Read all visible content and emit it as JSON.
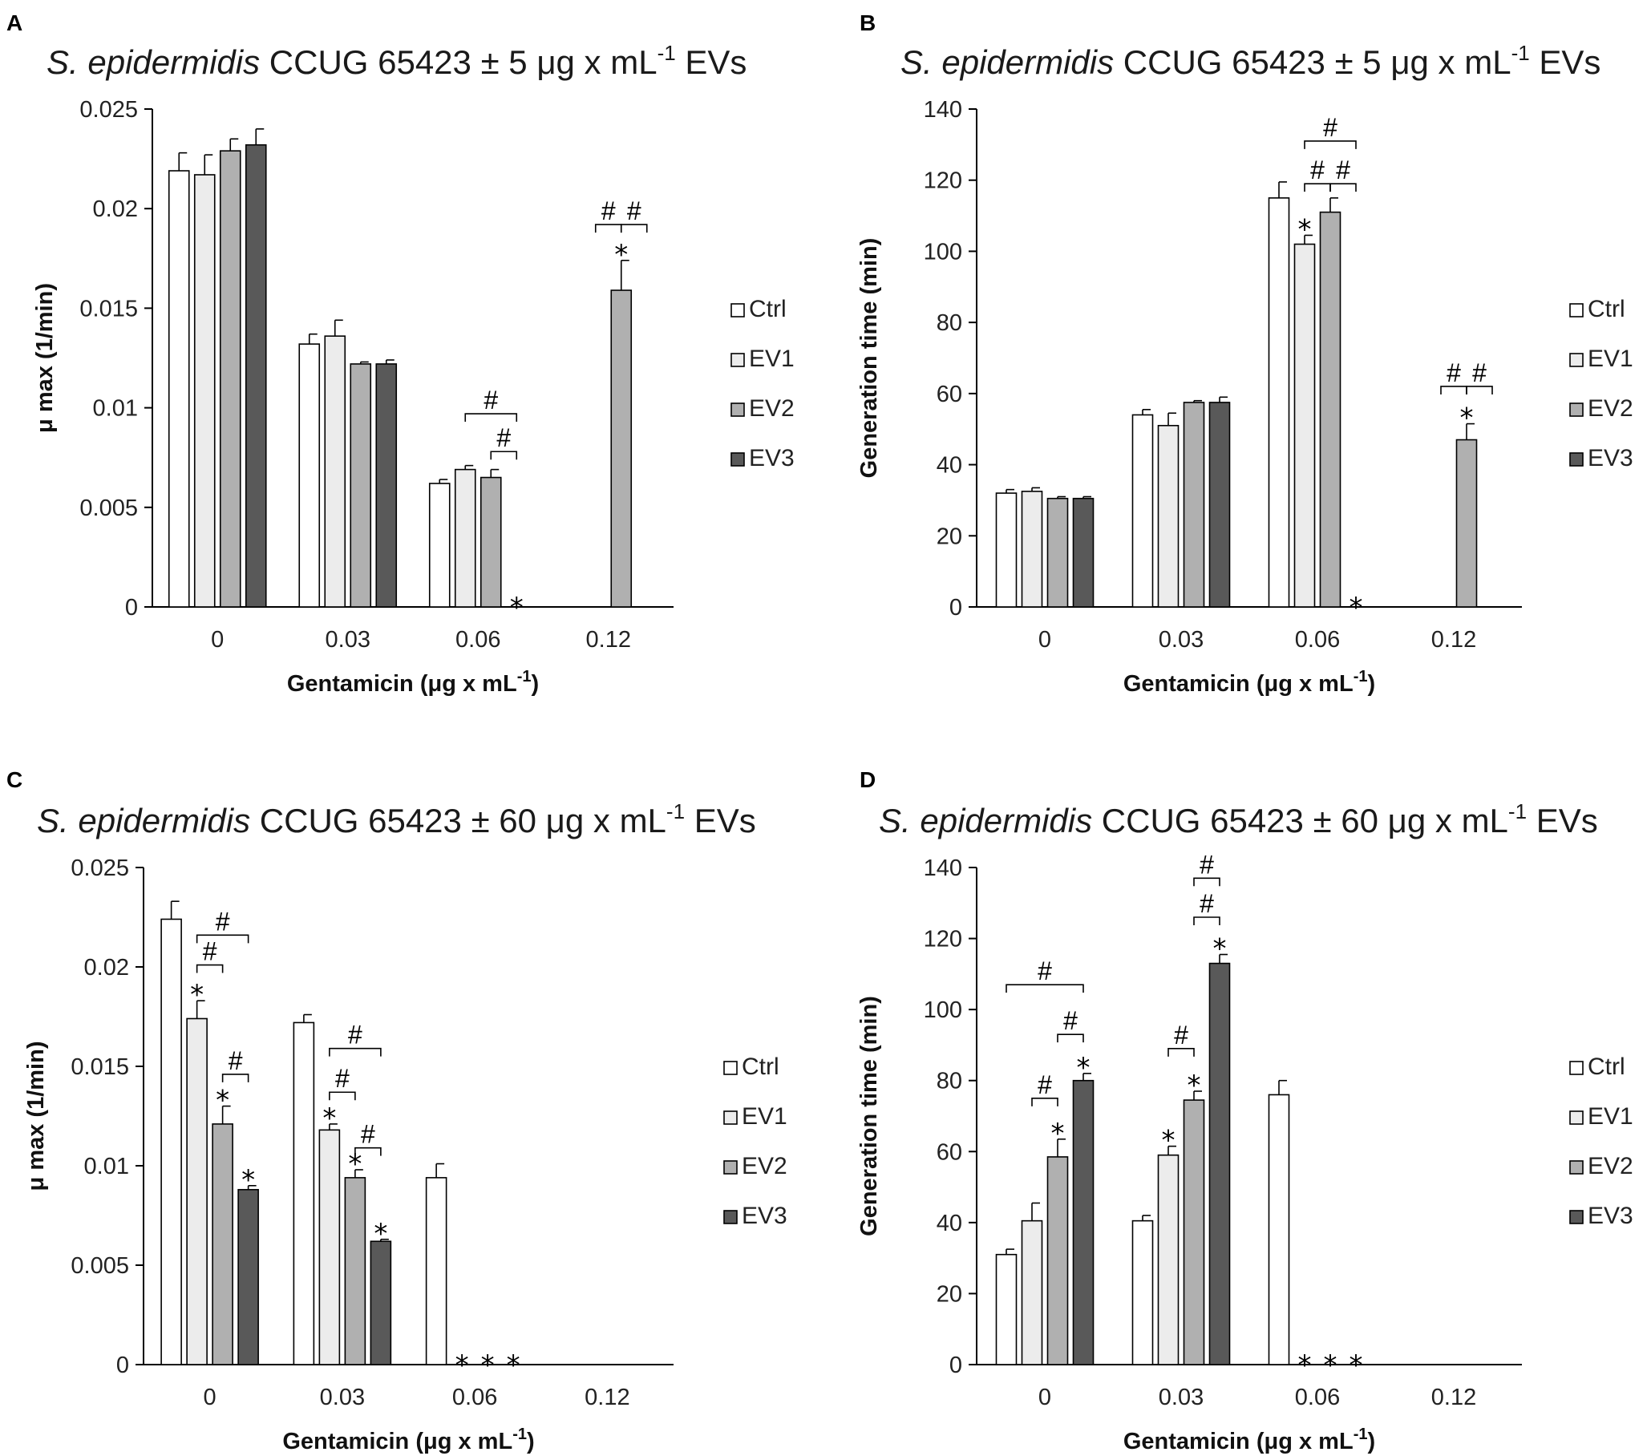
{
  "colors": {
    "Ctrl": "#ffffff",
    "EV1": "#ececec",
    "EV2": "#b0b0b0",
    "EV3": "#595959",
    "stroke": "#000000"
  },
  "chart_data": [
    {
      "panel": "A",
      "type": "bar",
      "title_italic": "S. epidermidis",
      "title_main": "CCUG 65423 ± 5 μg x mL",
      "title_sup": "-1",
      "title_tail": "EVs",
      "ylabel": "μ max (1/min)",
      "xlabel_main": "Gentamicin (μg x mL",
      "xlabel_sup": "-1",
      "xlabel_tail": ")",
      "ylim": [
        0,
        0.025
      ],
      "yticks": [
        "0",
        "0.005",
        "0.01",
        "0.015",
        "0.02",
        "0.025"
      ],
      "yticks_values": [
        0,
        0.005,
        0.01,
        0.015,
        0.02,
        0.025
      ],
      "categories": [
        "0",
        "0.03",
        "0.06",
        "0.12"
      ],
      "legend": [
        "Ctrl",
        "EV1",
        "EV2",
        "EV3"
      ],
      "series": [
        {
          "name": "Ctrl",
          "values": [
            0.0219,
            0.0132,
            0.0062,
            null
          ],
          "errors": [
            0.0009,
            0.0005,
            0.0002,
            null
          ]
        },
        {
          "name": "EV1",
          "values": [
            0.0217,
            0.0136,
            0.0069,
            null
          ],
          "errors": [
            0.001,
            0.0008,
            0.0002,
            null
          ]
        },
        {
          "name": "EV2",
          "values": [
            0.0229,
            0.0122,
            0.0065,
            0.0159
          ],
          "errors": [
            0.0006,
            0.0001,
            0.0004,
            0.0015
          ]
        },
        {
          "name": "EV3",
          "values": [
            0.0232,
            0.0122,
            null,
            null
          ],
          "errors": [
            0.0008,
            0.0002,
            null,
            null
          ]
        }
      ],
      "stars": [
        {
          "category": 2,
          "series": 3,
          "at": "baseline",
          "text": "*"
        },
        {
          "category": 3,
          "series": 2,
          "at": "bar",
          "text": "*"
        }
      ],
      "brackets": [
        {
          "category": 2,
          "from": 2,
          "to": 3,
          "level": 0.0078,
          "text": "#"
        },
        {
          "category": 2,
          "from": 1,
          "to": 3,
          "level": 0.0097,
          "text": "#"
        },
        {
          "category": 3,
          "from": 1,
          "to": 2,
          "level": 0.0192,
          "text": "#"
        },
        {
          "category": 3,
          "from": 2,
          "to": 3,
          "level": 0.0192,
          "text": "#"
        }
      ]
    },
    {
      "panel": "B",
      "type": "bar",
      "title_italic": "S. epidermidis",
      "title_main": "CCUG 65423 ± 5 μg x mL",
      "title_sup": "-1",
      "title_tail": "EVs",
      "ylabel": "Generation time (min)",
      "xlabel_main": "Gentamicin (μg x mL",
      "xlabel_sup": "-1",
      "xlabel_tail": ")",
      "ylim": [
        0,
        140
      ],
      "yticks": [
        "0",
        "20",
        "40",
        "60",
        "80",
        "100",
        "120",
        "140"
      ],
      "yticks_values": [
        0,
        20,
        40,
        60,
        80,
        100,
        120,
        140
      ],
      "categories": [
        "0",
        "0.03",
        "0.06",
        "0.12"
      ],
      "legend": [
        "Ctrl",
        "EV1",
        "EV2",
        "EV3"
      ],
      "series": [
        {
          "name": "Ctrl",
          "values": [
            32,
            54,
            115,
            null
          ],
          "errors": [
            1,
            1.5,
            4.5,
            null
          ]
        },
        {
          "name": "EV1",
          "values": [
            32.5,
            51,
            102,
            null
          ],
          "errors": [
            1,
            3.5,
            2.5,
            null
          ]
        },
        {
          "name": "EV2",
          "values": [
            30.5,
            57.5,
            111,
            47
          ],
          "errors": [
            0.5,
            0.5,
            4,
            4.5
          ]
        },
        {
          "name": "EV3",
          "values": [
            30.5,
            57.5,
            null,
            null
          ],
          "errors": [
            0.5,
            1.5,
            null,
            null
          ]
        }
      ],
      "stars": [
        {
          "category": 2,
          "series": 1,
          "at": "bar",
          "text": "*"
        },
        {
          "category": 2,
          "series": 3,
          "at": "baseline",
          "text": "*"
        },
        {
          "category": 3,
          "series": 2,
          "at": "bar",
          "text": "*"
        }
      ],
      "brackets": [
        {
          "category": 2,
          "from": 1,
          "to": 2,
          "level": 119,
          "text": "#"
        },
        {
          "category": 2,
          "from": 2,
          "to": 3,
          "level": 119,
          "text": "#"
        },
        {
          "category": 2,
          "from": 1,
          "to": 3,
          "level": 131,
          "text": "#"
        },
        {
          "category": 3,
          "from": 1,
          "to": 2,
          "level": 62,
          "text": "#"
        },
        {
          "category": 3,
          "from": 2,
          "to": 3,
          "level": 62,
          "text": "#"
        }
      ]
    },
    {
      "panel": "C",
      "type": "bar",
      "title_italic": "S. epidermidis",
      "title_main": "CCUG 65423 ± 60 μg x mL",
      "title_sup": "-1",
      "title_tail": "EVs",
      "ylabel": "μ max (1/min)",
      "xlabel_main": "Gentamicin (μg x mL",
      "xlabel_sup": "-1",
      "xlabel_tail": ")",
      "ylim": [
        0,
        0.025
      ],
      "yticks": [
        "0",
        "0.005",
        "0.01",
        "0.015",
        "0.02",
        "0.025"
      ],
      "yticks_values": [
        0,
        0.005,
        0.01,
        0.015,
        0.02,
        0.025
      ],
      "categories": [
        "0",
        "0.03",
        "0.06",
        "0.12"
      ],
      "legend": [
        "Ctrl",
        "EV1",
        "EV2",
        "EV3"
      ],
      "series": [
        {
          "name": "Ctrl",
          "values": [
            0.0224,
            0.0172,
            0.0094,
            null
          ],
          "errors": [
            0.0009,
            0.0004,
            0.0007,
            null
          ]
        },
        {
          "name": "EV1",
          "values": [
            0.0174,
            0.0118,
            null,
            null
          ],
          "errors": [
            0.0009,
            0.0003,
            null,
            null
          ]
        },
        {
          "name": "EV2",
          "values": [
            0.0121,
            0.0094,
            null,
            null
          ],
          "errors": [
            0.0009,
            0.0004,
            null,
            null
          ]
        },
        {
          "name": "EV3",
          "values": [
            0.0088,
            0.0062,
            null,
            null
          ],
          "errors": [
            0.0002,
            0.0001,
            null,
            null
          ]
        }
      ],
      "stars": [
        {
          "category": 0,
          "series": 1,
          "at": "bar",
          "text": "*"
        },
        {
          "category": 0,
          "series": 2,
          "at": "bar",
          "text": "*"
        },
        {
          "category": 0,
          "series": 3,
          "at": "bar",
          "text": "*"
        },
        {
          "category": 1,
          "series": 1,
          "at": "bar",
          "text": "*"
        },
        {
          "category": 1,
          "series": 2,
          "at": "bar",
          "text": "*"
        },
        {
          "category": 1,
          "series": 3,
          "at": "bar",
          "text": "*"
        },
        {
          "category": 2,
          "series": 1,
          "at": "baseline",
          "text": "*"
        },
        {
          "category": 2,
          "series": 2,
          "at": "baseline",
          "text": "*"
        },
        {
          "category": 2,
          "series": 3,
          "at": "baseline",
          "text": "*"
        }
      ],
      "brackets": [
        {
          "category": 0,
          "from": 1,
          "to": 3,
          "level": 0.0216,
          "text": "#"
        },
        {
          "category": 0,
          "from": 1,
          "to": 2,
          "level": 0.0201,
          "text": "#"
        },
        {
          "category": 0,
          "from": 2,
          "to": 3,
          "level": 0.0146,
          "text": "#"
        },
        {
          "category": 1,
          "from": 1,
          "to": 3,
          "level": 0.0159,
          "text": "#"
        },
        {
          "category": 1,
          "from": 1,
          "to": 2,
          "level": 0.0137,
          "text": "#"
        },
        {
          "category": 1,
          "from": 2,
          "to": 3,
          "level": 0.0109,
          "text": "#"
        }
      ]
    },
    {
      "panel": "D",
      "type": "bar",
      "title_italic": "S. epidermidis",
      "title_main": "CCUG 65423 ± 60 μg x mL",
      "title_sup": "-1",
      "title_tail": "EVs",
      "ylabel": "Generation time (min)",
      "xlabel_main": "Gentamicin (μg x mL",
      "xlabel_sup": "-1",
      "xlabel_tail": ")",
      "ylim": [
        0,
        140
      ],
      "yticks": [
        "0",
        "20",
        "40",
        "60",
        "80",
        "100",
        "120",
        "140"
      ],
      "yticks_values": [
        0,
        20,
        40,
        60,
        80,
        100,
        120,
        140
      ],
      "categories": [
        "0",
        "0.03",
        "0.06",
        "0.12"
      ],
      "legend": [
        "Ctrl",
        "EV1",
        "EV2",
        "EV3"
      ],
      "series": [
        {
          "name": "Ctrl",
          "values": [
            31,
            40.5,
            76,
            null
          ],
          "errors": [
            1.5,
            1.5,
            4,
            null
          ]
        },
        {
          "name": "EV1",
          "values": [
            40.5,
            59,
            null,
            null
          ],
          "errors": [
            5,
            2.5,
            null,
            null
          ]
        },
        {
          "name": "EV2",
          "values": [
            58.5,
            74.5,
            null,
            null
          ],
          "errors": [
            5,
            2.5,
            null,
            null
          ]
        },
        {
          "name": "EV3",
          "values": [
            80,
            113,
            null,
            null
          ],
          "errors": [
            2,
            2.5,
            null,
            null
          ]
        }
      ],
      "stars": [
        {
          "category": 0,
          "series": 2,
          "at": "bar",
          "text": "*"
        },
        {
          "category": 0,
          "series": 3,
          "at": "bar",
          "text": "*"
        },
        {
          "category": 1,
          "series": 1,
          "at": "bar",
          "text": "*"
        },
        {
          "category": 1,
          "series": 2,
          "at": "bar",
          "text": "*"
        },
        {
          "category": 1,
          "series": 3,
          "at": "bar",
          "text": "*"
        },
        {
          "category": 2,
          "series": 1,
          "at": "baseline",
          "text": "*"
        },
        {
          "category": 2,
          "series": 2,
          "at": "baseline",
          "text": "*"
        },
        {
          "category": 2,
          "series": 3,
          "at": "baseline",
          "text": "*"
        }
      ],
      "brackets": [
        {
          "category": 0,
          "from": 0,
          "to": 3,
          "level": 107,
          "text": "#"
        },
        {
          "category": 0,
          "from": 2,
          "to": 3,
          "level": 93,
          "text": "#"
        },
        {
          "category": 0,
          "from": 1,
          "to": 2,
          "level": 75,
          "text": "#"
        },
        {
          "category": 1,
          "from": 2,
          "to": 3,
          "level": 137,
          "text": "#"
        },
        {
          "category": 1,
          "from": 2,
          "to": 3,
          "level": 126,
          "text": "#"
        },
        {
          "category": 1,
          "from": 1,
          "to": 2,
          "level": 89,
          "text": "#"
        }
      ]
    }
  ]
}
